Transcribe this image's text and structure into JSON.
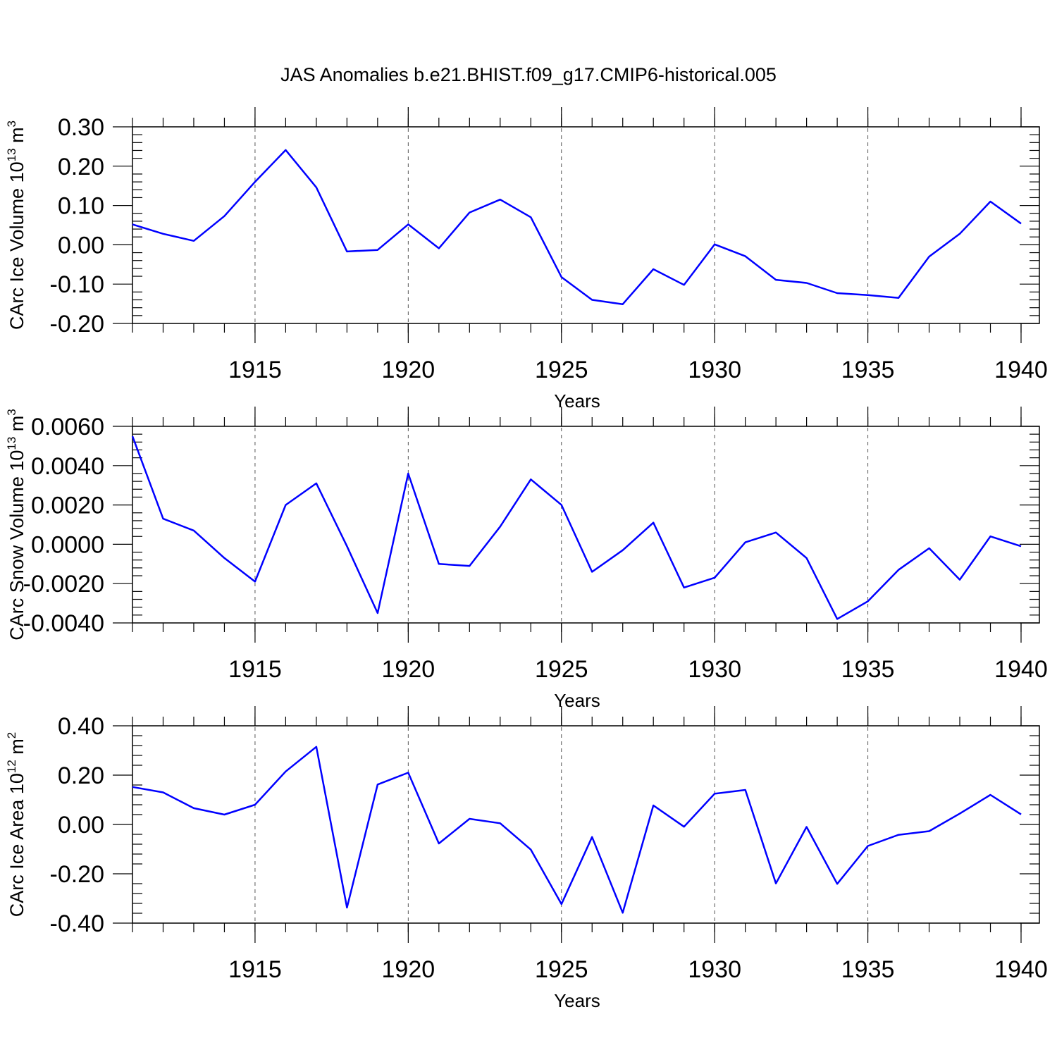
{
  "chart_data": {
    "title": "JAS Anomalies b.e21.BHIST.f09_g17.CMIP6-historical.005",
    "x_tick_labels": [
      "1915",
      "1920",
      "1925",
      "1930",
      "1935",
      "1940"
    ],
    "xlim": [
      1911,
      1940
    ],
    "x": [
      1911,
      1912,
      1913,
      1914,
      1915,
      1916,
      1917,
      1918,
      1919,
      1920,
      1921,
      1922,
      1923,
      1924,
      1925,
      1926,
      1927,
      1928,
      1929,
      1930,
      1931,
      1932,
      1933,
      1934,
      1935,
      1936,
      1937,
      1938,
      1939,
      1940
    ],
    "color": "#0000ff",
    "panels": [
      {
        "type": "line",
        "ylabel": "CArc Ice Volume 10",
        "ylabel_exp": "13",
        "ylabel_unit": " m",
        "ylabel_unit_exp": "3",
        "xlabel": "Years",
        "ylim": [
          -0.2,
          0.3
        ],
        "y_ticks": [
          0.3,
          0.2,
          0.1,
          0.0,
          -0.1,
          -0.2
        ],
        "y_tick_labels": [
          "0.30",
          "0.20",
          "0.10",
          "0.00",
          "-0.10",
          "-0.20"
        ],
        "values": [
          0.052,
          0.028,
          0.01,
          0.073,
          0.16,
          0.241,
          0.146,
          -0.017,
          -0.013,
          0.052,
          -0.009,
          0.082,
          0.115,
          0.07,
          -0.082,
          -0.14,
          -0.151,
          -0.062,
          -0.102,
          0.001,
          -0.029,
          -0.089,
          -0.097,
          -0.123,
          -0.128,
          -0.135,
          -0.03,
          0.028,
          0.11,
          0.054
        ]
      },
      {
        "type": "line",
        "ylabel": "CArc Snow Volume 10",
        "ylabel_exp": "13",
        "ylabel_unit": " m",
        "ylabel_unit_exp": "3",
        "xlabel": "Years",
        "ylim": [
          -0.004,
          0.006
        ],
        "y_ticks": [
          0.006,
          0.004,
          0.002,
          0.0,
          -0.002,
          -0.004
        ],
        "y_tick_labels": [
          "0.0060",
          "0.0040",
          "0.0020",
          "0.0000",
          "-0.0020",
          "-0.0040"
        ],
        "values": [
          0.0055,
          0.0013,
          0.0007,
          -0.0007,
          -0.0019,
          0.002,
          0.0031,
          -0.0001,
          -0.0035,
          0.0036,
          -0.001,
          -0.0011,
          0.0009,
          0.0033,
          0.002,
          -0.0014,
          -0.0003,
          0.0011,
          -0.0022,
          -0.0017,
          0.0001,
          0.0006,
          -0.0007,
          -0.0038,
          -0.0029,
          -0.0013,
          -0.0002,
          -0.0018,
          0.0004,
          -0.0001
        ]
      },
      {
        "type": "line",
        "ylabel": "CArc Ice Area 10",
        "ylabel_exp": "12",
        "ylabel_unit": " m",
        "ylabel_unit_exp": "2",
        "xlabel": "Years",
        "ylim": [
          -0.4,
          0.4
        ],
        "y_ticks": [
          0.4,
          0.2,
          0.0,
          -0.2,
          -0.4
        ],
        "y_tick_labels": [
          "0.40",
          "0.20",
          "0.00",
          "-0.20",
          "-0.40"
        ],
        "values": [
          0.152,
          0.13,
          0.066,
          0.04,
          0.08,
          0.215,
          0.315,
          -0.337,
          0.162,
          0.21,
          -0.077,
          0.023,
          0.005,
          -0.102,
          -0.323,
          -0.051,
          -0.358,
          0.077,
          -0.009,
          0.125,
          0.14,
          -0.239,
          -0.01,
          -0.241,
          -0.087,
          -0.042,
          -0.027,
          0.044,
          0.12,
          0.041
        ]
      }
    ]
  }
}
